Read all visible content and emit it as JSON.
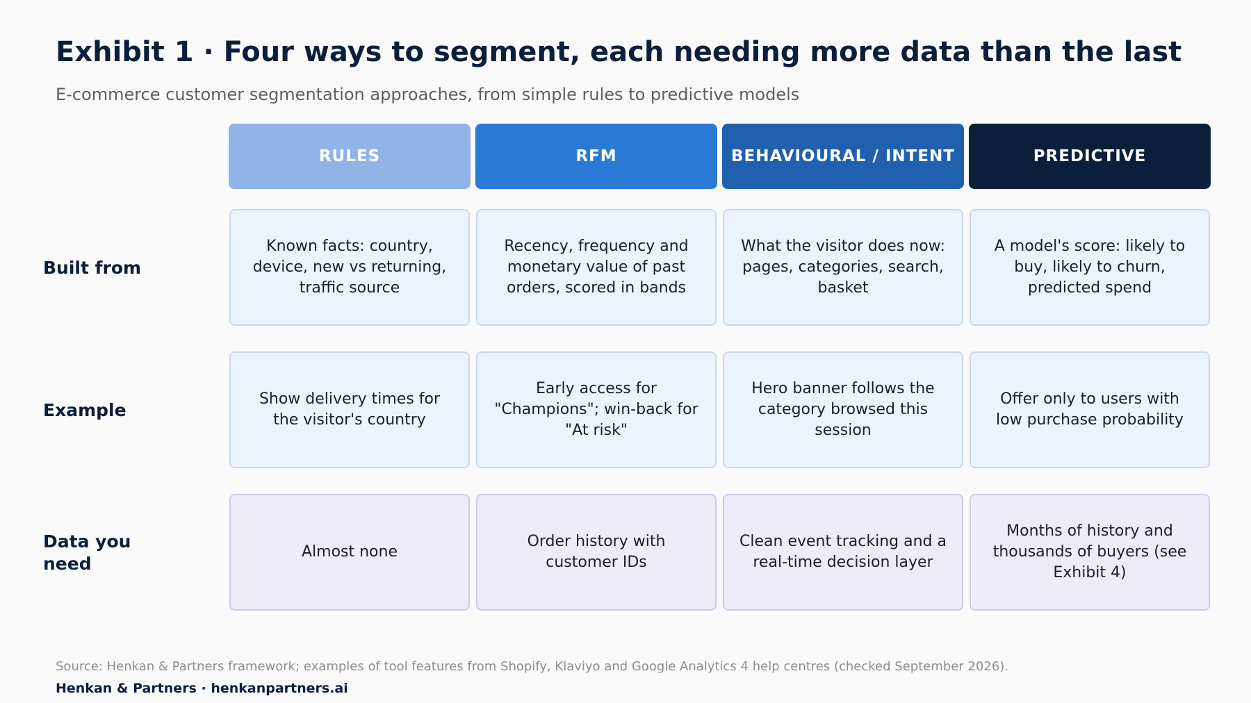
{
  "title": "Exhibit 1 · Four ways to segment, each needing more data than the last",
  "subtitle": "E-commerce customer segmentation approaches, from simple rules to predictive models",
  "columns": [
    {
      "label": "RULES",
      "color": "#91b4e8"
    },
    {
      "label": "RFM",
      "color": "#2a79d6"
    },
    {
      "label": "BEHAVIOURAL / INTENT",
      "color": "#2160af"
    },
    {
      "label": "PREDICTIVE",
      "color": "#0c1f3a"
    }
  ],
  "rows": [
    {
      "label": "Built from",
      "cells": [
        "Known facts: country, device, new vs returning, traffic source",
        "Recency, frequency and monetary value of past orders, scored in bands",
        "What the visitor does now: pages, categories, search, basket",
        "A model's score: likely to buy, likely to churn, predicted spend"
      ]
    },
    {
      "label": "Example",
      "cells": [
        "Show delivery times for the visitor's country",
        "Early access for \"Champions\"; win-back for \"At risk\"",
        "Hero banner follows the category browsed this session",
        "Offer only to users with low purchase probability"
      ]
    },
    {
      "label": "Data you need",
      "cells": [
        "Almost none",
        "Order history with customer IDs",
        "Clean event tracking and a real-time decision layer",
        "Months of history and thousands of buyers (see Exhibit 4)"
      ]
    }
  ],
  "footer": {
    "source": "Source: Henkan & Partners framework; examples of tool features from Shopify, Klaviyo and Google Analytics 4 help centres (checked September 2026).",
    "brand": "Henkan & Partners · henkanpartners.ai"
  }
}
